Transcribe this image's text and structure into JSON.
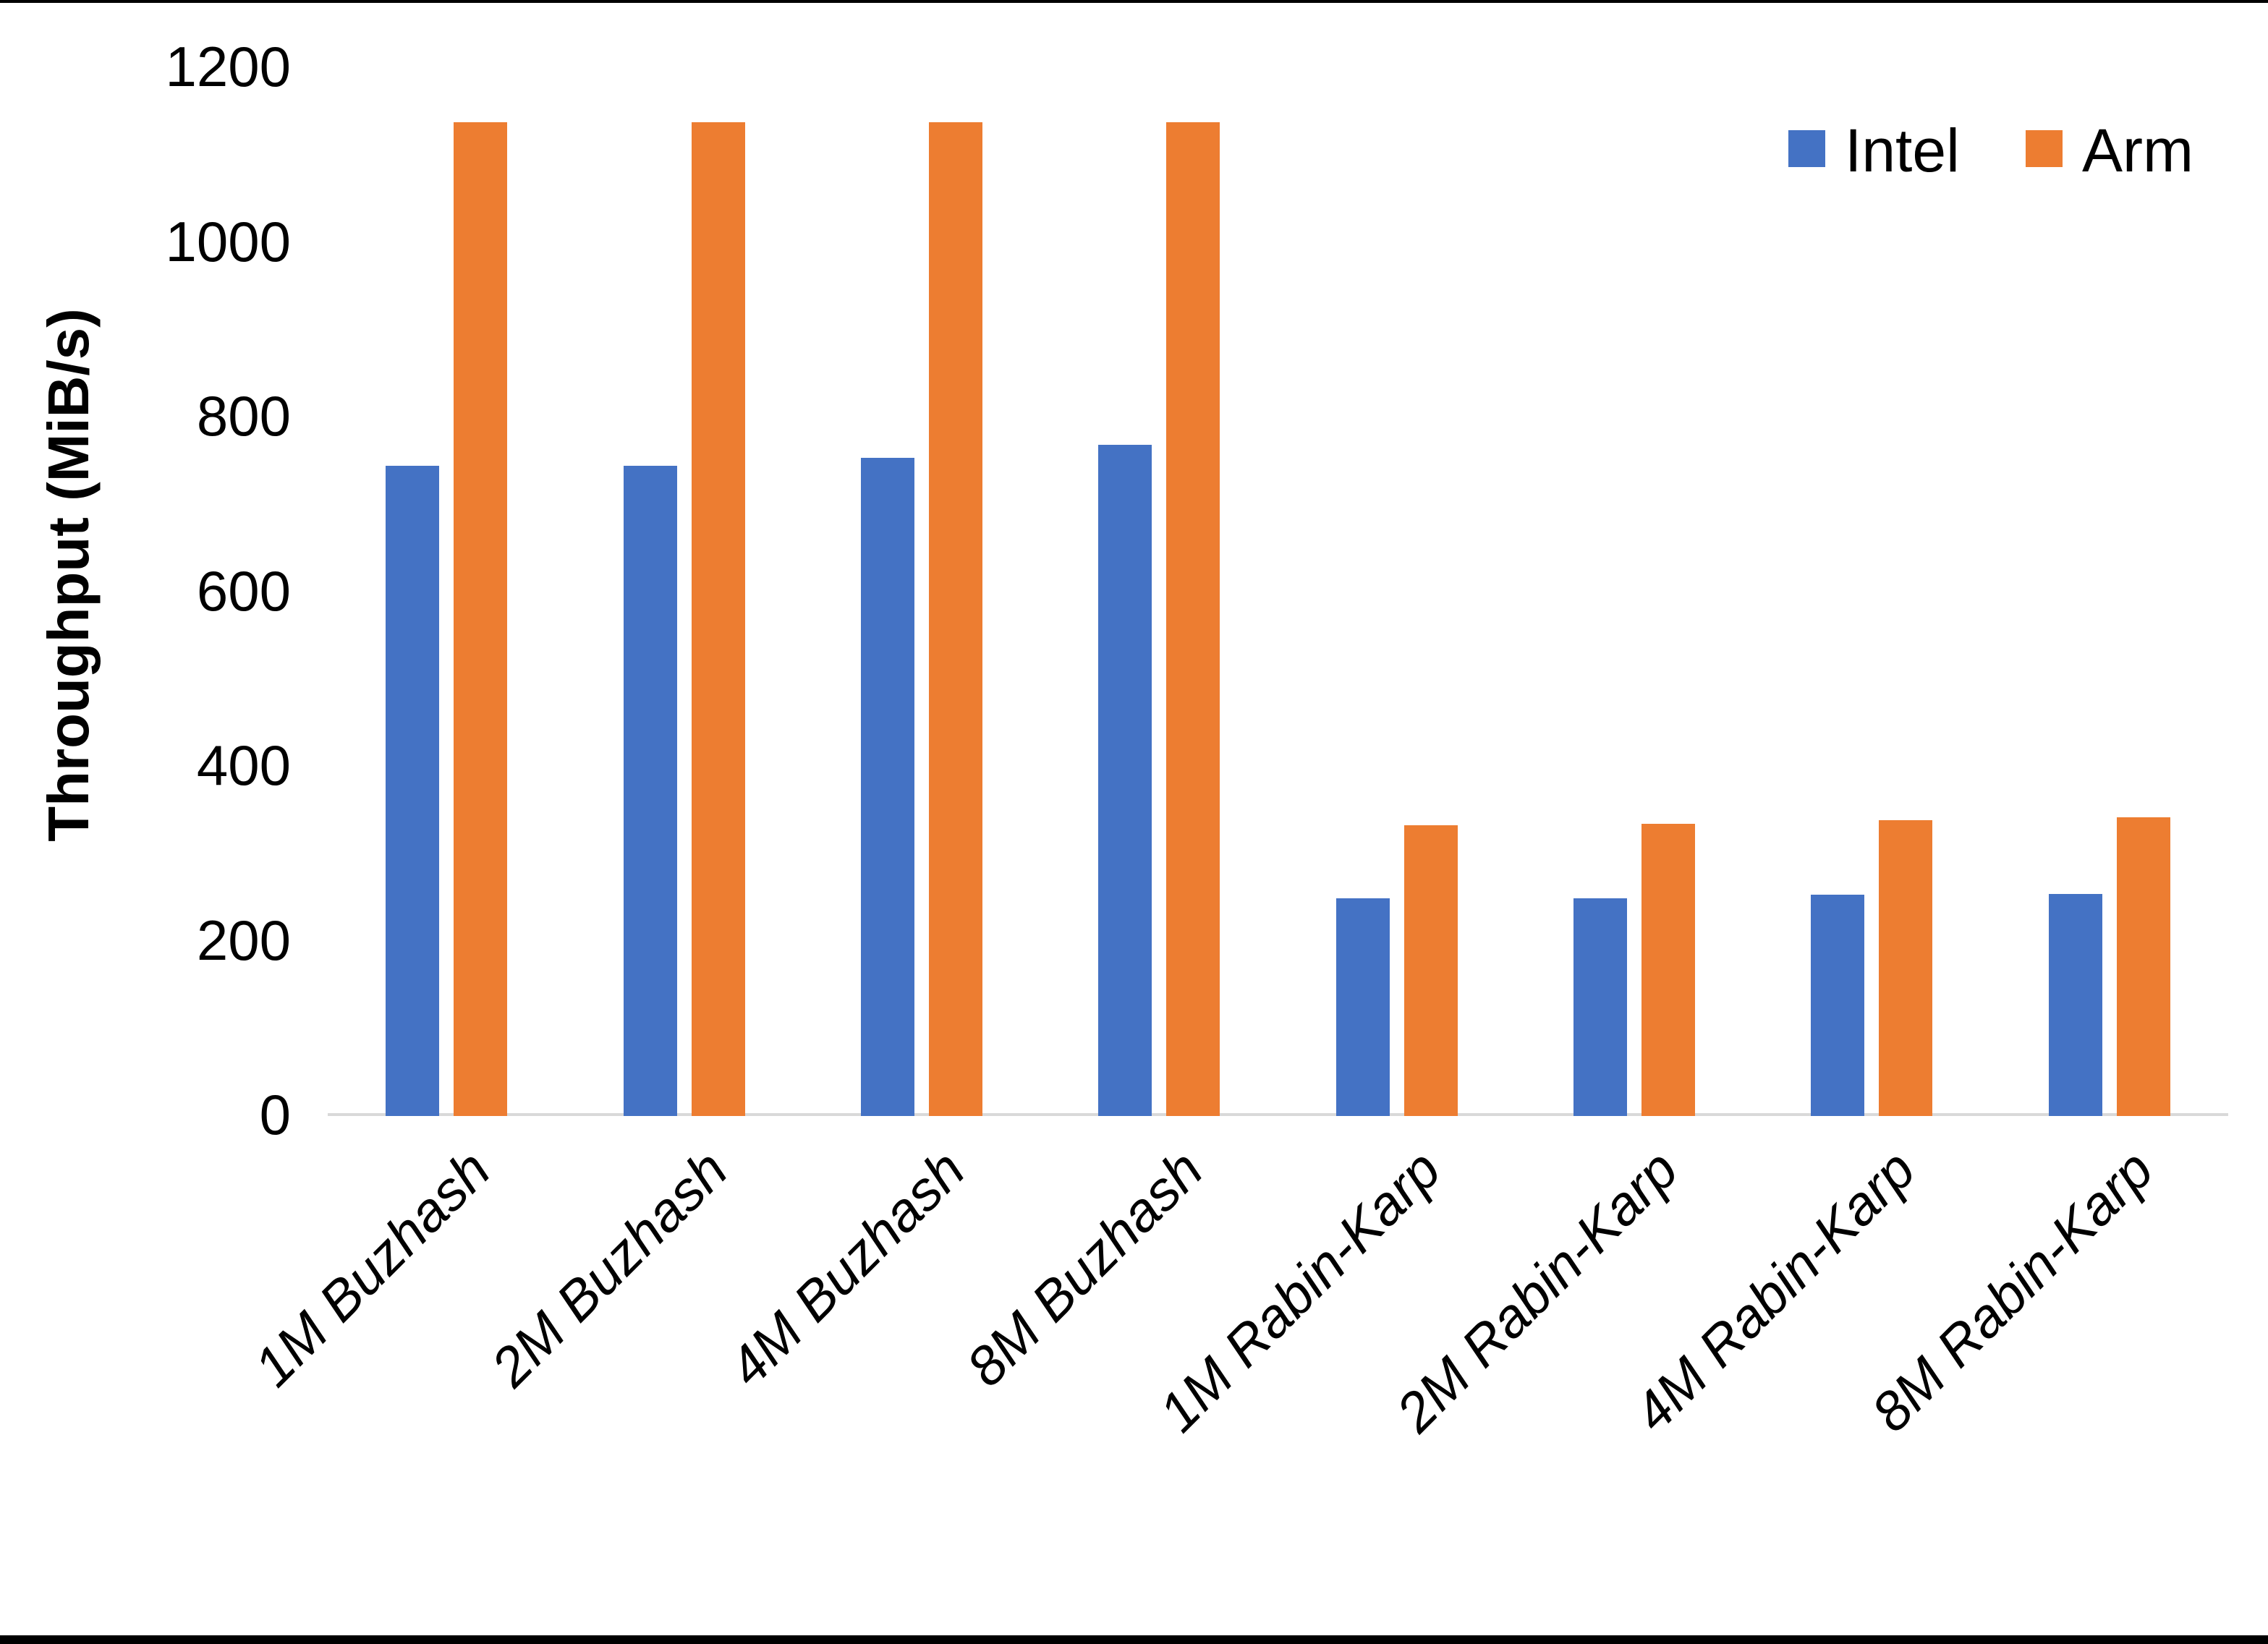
{
  "chart_data": {
    "type": "bar",
    "title": "",
    "xlabel": "",
    "ylabel": "Throughput (MiB/s)",
    "ylim": [
      0,
      1200
    ],
    "yticks": [
      0,
      200,
      400,
      600,
      800,
      1000,
      1200
    ],
    "grid": false,
    "legend_position": "top-right",
    "axis_line_color": "#D9D9D9",
    "categories": [
      "1M Buzhash",
      "2M Buzhash",
      "4M Buzhash",
      "8M Buzhash",
      "1M Rabin-Karp",
      "2M Rabin-Karp",
      "4M Rabin-Karp",
      "8M Rabin-Karp"
    ],
    "series": [
      {
        "name": "Intel",
        "color": "#4472C4",
        "values": [
          743,
          743,
          752,
          767,
          248,
          248,
          252,
          253
        ]
      },
      {
        "name": "Arm",
        "color": "#ED7D31",
        "values": [
          1136,
          1136,
          1136,
          1136,
          331,
          333,
          337,
          340
        ]
      }
    ]
  },
  "frame": {
    "border_color": "#000000"
  }
}
